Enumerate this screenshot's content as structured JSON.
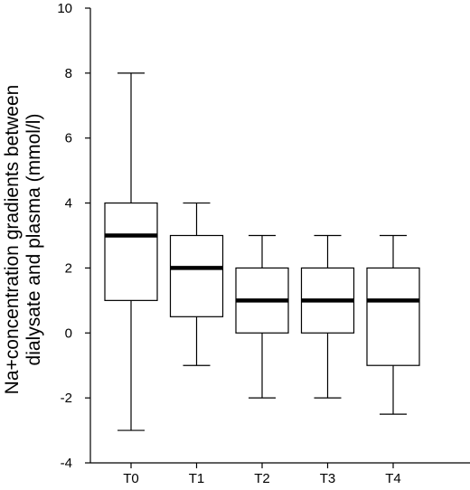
{
  "chart_data": {
    "type": "box",
    "ylabel_lines": [
      "Na+concentration gradients between",
      "dialysate and plasma (mmol/l)"
    ],
    "xlabel": "",
    "ylim": [
      -4,
      10
    ],
    "yticks": [
      -4,
      -2,
      0,
      2,
      4,
      6,
      8,
      10
    ],
    "categories": [
      "T0",
      "T1",
      "T2",
      "T3",
      "T4"
    ],
    "boxes": [
      {
        "label": "T0",
        "min": -3,
        "q1": 1,
        "median": 3,
        "q3": 4,
        "max": 8
      },
      {
        "label": "T1",
        "min": -1,
        "q1": 0.5,
        "median": 2,
        "q3": 3,
        "max": 4
      },
      {
        "label": "T2",
        "min": -2,
        "q1": 0,
        "median": 1,
        "q3": 2,
        "max": 3
      },
      {
        "label": "T3",
        "min": -2,
        "q1": 0,
        "median": 1,
        "q3": 2,
        "max": 3
      },
      {
        "label": "T4",
        "min": -2.5,
        "q1": -1,
        "median": 1,
        "q3": 2,
        "max": 3
      }
    ],
    "grid": false
  }
}
